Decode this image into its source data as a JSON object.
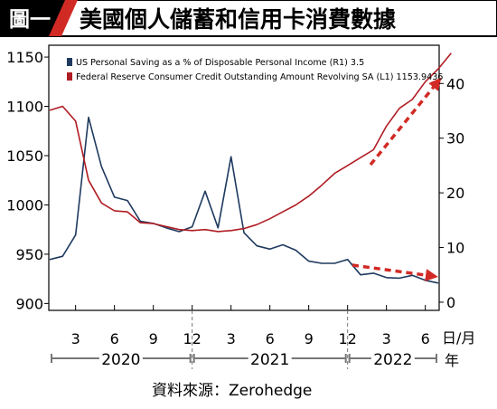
{
  "figure": {
    "badge": "圖一",
    "title": "美國個人儲蓄和信用卡消費數據",
    "source": "資料來源：Zerohedge",
    "unit_label": "日/月",
    "year_unit": "年"
  },
  "colors": {
    "background": "#ffffff",
    "banner_dark": "#000000",
    "banner_light": "#ffffff",
    "saving_line": "#1f3a5f",
    "credit_line": "#b01c24",
    "trend_arrow": "#d12a25",
    "axis": "#000000",
    "gridline": "#777777"
  },
  "chart_data": {
    "type": "line",
    "title": "美國個人儲蓄和信用卡消費數據",
    "xlabel": "日/月",
    "ylabel": "",
    "legend_position": "top-left",
    "grid": false,
    "x_axis": {
      "range": [
        "2020-01",
        "2022-07"
      ],
      "tick_labels": [
        "3",
        "6",
        "9",
        "12",
        "3",
        "6",
        "9",
        "12",
        "3",
        "6"
      ],
      "tick_dates": [
        "2020-03",
        "2020-06",
        "2020-09",
        "2020-12",
        "2021-03",
        "2021-06",
        "2021-09",
        "2021-12",
        "2022-03",
        "2022-06"
      ],
      "year_labels": [
        "2020",
        "2021",
        "2022"
      ]
    },
    "y_left": {
      "range": [
        893,
        1162
      ],
      "ticks": [
        900,
        950,
        1000,
        1050,
        1100,
        1150
      ]
    },
    "y_right": {
      "range": [
        -1.5,
        47
      ],
      "ticks": [
        0,
        10,
        20,
        30,
        40
      ]
    },
    "series": [
      {
        "name": "US Personal Saving as a % of Disposable Personal Income (R1) 3.5",
        "axis": "right",
        "color": "#1f3a5f",
        "points": [
          [
            "2020-01",
            7.8
          ],
          [
            "2020-02",
            8.4
          ],
          [
            "2020-03",
            12.3
          ],
          [
            "2020-04",
            33.8
          ],
          [
            "2020-05",
            24.8
          ],
          [
            "2020-06",
            19.2
          ],
          [
            "2020-07",
            18.6
          ],
          [
            "2020-08",
            14.8
          ],
          [
            "2020-09",
            14.4
          ],
          [
            "2020-10",
            13.6
          ],
          [
            "2020-11",
            12.9
          ],
          [
            "2020-12",
            13.8
          ],
          [
            "2021-01",
            20.3
          ],
          [
            "2021-02",
            13.6
          ],
          [
            "2021-03",
            26.6
          ],
          [
            "2021-04",
            12.7
          ],
          [
            "2021-05",
            10.3
          ],
          [
            "2021-06",
            9.7
          ],
          [
            "2021-07",
            10.5
          ],
          [
            "2021-08",
            9.5
          ],
          [
            "2021-09",
            7.5
          ],
          [
            "2021-10",
            7.1
          ],
          [
            "2021-11",
            7.1
          ],
          [
            "2021-12",
            7.8
          ],
          [
            "2022-01",
            5.0
          ],
          [
            "2022-02",
            5.3
          ],
          [
            "2022-03",
            4.5
          ],
          [
            "2022-04",
            4.4
          ],
          [
            "2022-05",
            4.9
          ],
          [
            "2022-06",
            4.0
          ],
          [
            "2022-07",
            3.5
          ]
        ]
      },
      {
        "name": "Federal Reserve Consumer Credit Outstanding Amount Revolving SA (L1) 1153.9436",
        "axis": "left",
        "color": "#b01c24",
        "points": [
          [
            "2020-01",
            1096
          ],
          [
            "2020-02",
            1100
          ],
          [
            "2020-03",
            1085
          ],
          [
            "2020-04",
            1025
          ],
          [
            "2020-05",
            1002
          ],
          [
            "2020-06",
            994
          ],
          [
            "2020-07",
            993
          ],
          [
            "2020-08",
            982
          ],
          [
            "2020-09",
            981
          ],
          [
            "2020-10",
            978
          ],
          [
            "2020-11",
            975
          ],
          [
            "2020-12",
            974
          ],
          [
            "2021-01",
            975
          ],
          [
            "2021-02",
            973
          ],
          [
            "2021-03",
            974
          ],
          [
            "2021-04",
            976
          ],
          [
            "2021-05",
            980
          ],
          [
            "2021-06",
            986
          ],
          [
            "2021-07",
            993
          ],
          [
            "2021-08",
            1000
          ],
          [
            "2021-09",
            1009
          ],
          [
            "2021-10",
            1020
          ],
          [
            "2021-11",
            1032
          ],
          [
            "2021-12",
            1040
          ],
          [
            "2022-01",
            1048
          ],
          [
            "2022-02",
            1056
          ],
          [
            "2022-03",
            1080
          ],
          [
            "2022-04",
            1098
          ],
          [
            "2022-05",
            1107
          ],
          [
            "2022-06",
            1125
          ],
          [
            "2022-07",
            1138
          ],
          [
            "2022-08",
            1153.9436
          ]
        ]
      }
    ]
  }
}
